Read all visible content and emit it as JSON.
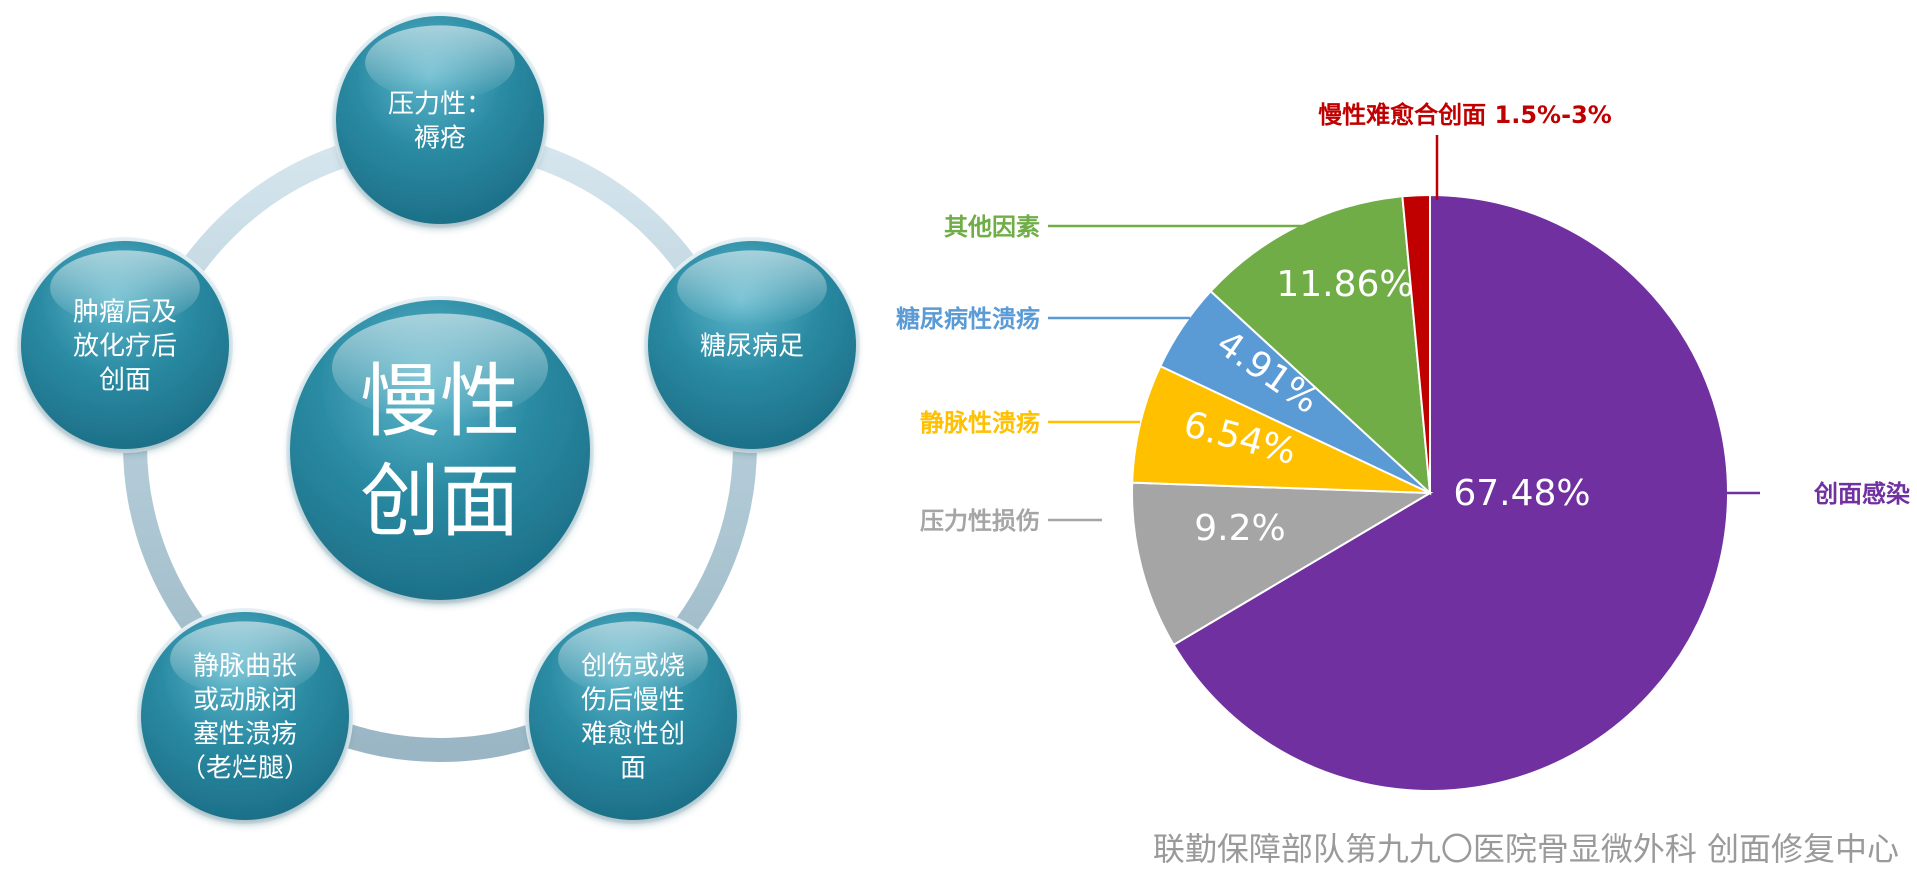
{
  "diagram": {
    "center": [
      "慢性",
      "创面"
    ],
    "nodes": [
      {
        "id": "top",
        "lines": [
          "压力性：",
          "褥疮"
        ]
      },
      {
        "id": "right",
        "lines": [
          "糖尿病足"
        ]
      },
      {
        "id": "bottom-right",
        "lines": [
          "创伤或烧",
          "伤后慢性",
          "难愈性创",
          "面"
        ]
      },
      {
        "id": "bottom-left",
        "lines": [
          "静脉曲张",
          "或动脉闭",
          "塞性溃疡",
          "（老烂腿）"
        ]
      },
      {
        "id": "left",
        "lines": [
          "肿瘤后及",
          "放化疗后",
          "创面"
        ]
      }
    ]
  },
  "chart_data": {
    "type": "pie",
    "slices": [
      {
        "label": "创面感染",
        "value": 67.48,
        "value_label": "67.48%",
        "color": "#7030a0"
      },
      {
        "label": "压力性损伤",
        "value": 9.2,
        "value_label": "9.2%",
        "color": "#a5a5a5"
      },
      {
        "label": "静脉性溃疡",
        "value": 6.54,
        "value_label": "6.54%",
        "color": "#ffc000"
      },
      {
        "label": "糖尿病性溃疡",
        "value": 4.91,
        "value_label": "4.91%",
        "color": "#5b9bd5"
      },
      {
        "label": "其他因素",
        "value": 11.86,
        "value_label": "11.86%",
        "color": "#70ad47"
      },
      {
        "label": "慢性难愈合创面 1.5%-3%",
        "value": 1.5,
        "value_label": "",
        "color": "#c00000"
      }
    ]
  },
  "footer": "联勤保障部队第九九〇医院骨显微外科 创面修复中心"
}
